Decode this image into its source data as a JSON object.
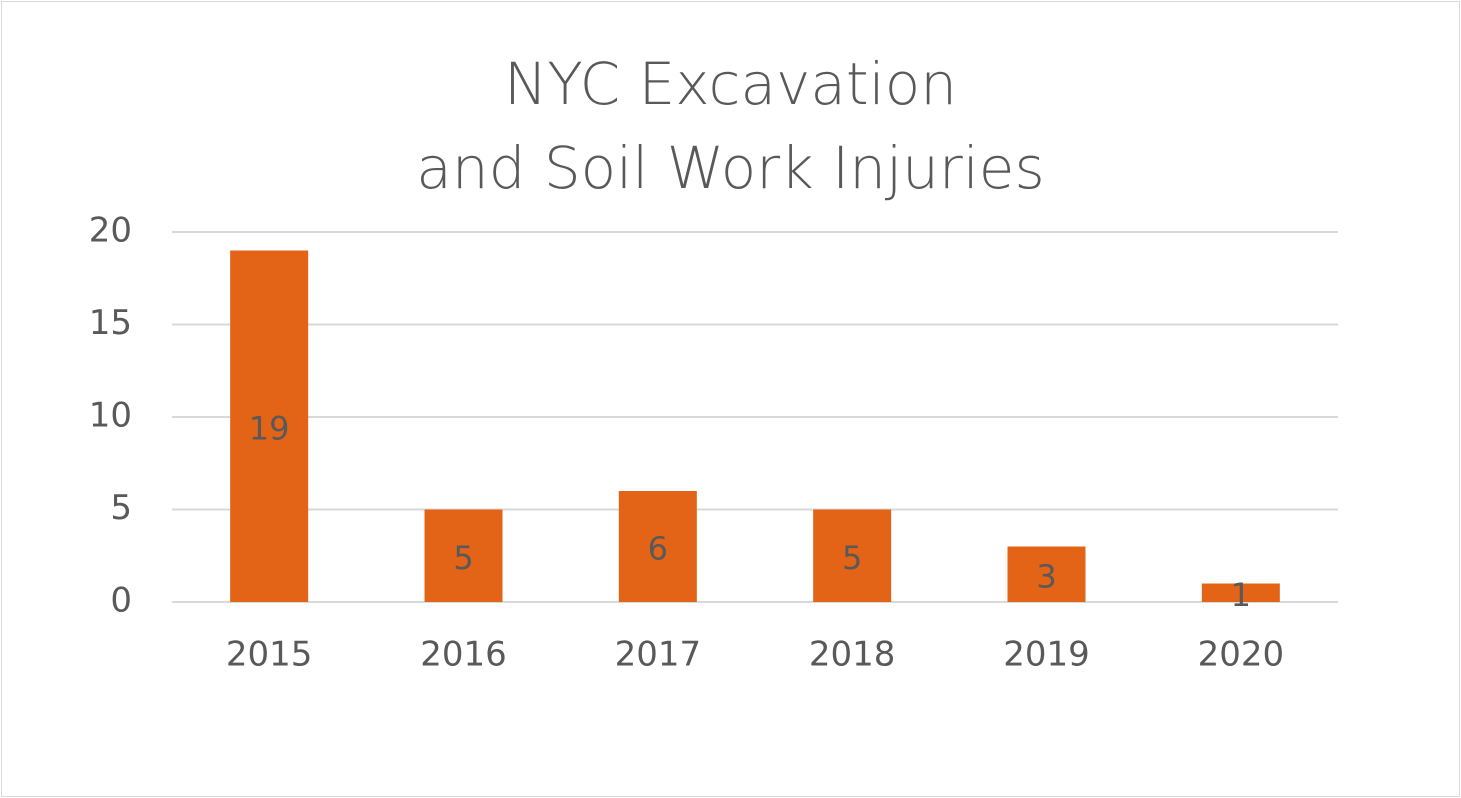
{
  "chart_data": {
    "type": "bar",
    "title": "NYC Excavation\nand Soil Work Injuries",
    "categories": [
      "2015",
      "2016",
      "2017",
      "2018",
      "2019",
      "2020"
    ],
    "values": [
      19,
      5,
      6,
      5,
      3,
      1
    ],
    "color": "#e46417",
    "ylim": [
      0,
      20
    ],
    "yticks": [
      0,
      5,
      10,
      15,
      20
    ],
    "grid": true,
    "data_labels": true
  }
}
